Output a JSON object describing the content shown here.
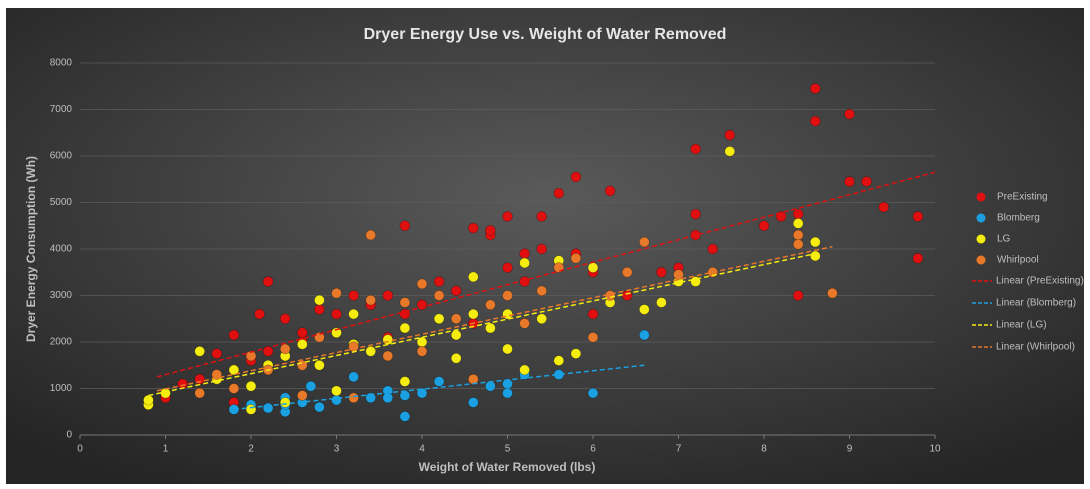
{
  "chart_data": {
    "type": "scatter",
    "title": "Dryer Energy Use vs. Weight of Water Removed",
    "x_label": "Weight of Water Removed (lbs)",
    "y_label": "Dryer Energy Consumption (Wh)",
    "xlim": [
      0,
      10
    ],
    "xticks": [
      0,
      1,
      2,
      3,
      4,
      5,
      6,
      7,
      8,
      9,
      10
    ],
    "ylim": [
      0,
      8000
    ],
    "yticks": [
      0,
      1000,
      2000,
      3000,
      4000,
      5000,
      6000,
      7000,
      8000
    ],
    "grid": true,
    "legend": "right",
    "series": [
      {
        "name": "PreExisting",
        "color": "#e01010",
        "x": [
          1,
          1.2,
          1.6,
          1.8,
          1.8,
          2,
          2.1,
          2.2,
          2.2,
          2.4,
          2.6,
          2.8,
          3,
          3.2,
          3.4,
          3.6,
          3.8,
          3.8,
          4,
          4.2,
          4.4,
          4.6,
          4.8,
          4.8,
          5,
          5,
          5.2,
          5.4,
          5.4,
          5.6,
          5.8,
          5.8,
          6,
          6,
          6.2,
          6.4,
          6.8,
          7,
          7.2,
          7.2,
          7.2,
          7.4,
          7.6,
          8,
          8.2,
          8.4,
          8.4,
          8.6,
          8.6,
          9,
          9,
          9.2,
          9.4,
          9.8,
          9.8,
          1.4,
          2.6,
          3.6,
          4.6,
          5.2
        ],
        "values": [
          800,
          1100,
          1750,
          2150,
          700,
          1600,
          2600,
          3300,
          1800,
          2500,
          2200,
          2700,
          2600,
          3000,
          2800,
          3000,
          4500,
          2600,
          2800,
          3300,
          3100,
          4450,
          4300,
          4400,
          4700,
          3600,
          3900,
          4700,
          4000,
          5200,
          5550,
          3900,
          3500,
          2600,
          5250,
          3000,
          3500,
          3600,
          6150,
          4750,
          4300,
          4000,
          6450,
          4500,
          4700,
          4750,
          3000,
          7450,
          6750,
          6900,
          5450,
          5450,
          4900,
          4700,
          3800,
          1200,
          2000,
          2100,
          2400,
          3300
        ]
      },
      {
        "name": "Blomberg",
        "color": "#1ba1e2",
        "x": [
          1.8,
          2,
          2.2,
          2.4,
          2.4,
          2.6,
          2.7,
          2.8,
          3,
          3.2,
          3.4,
          3.6,
          3.8,
          3.8,
          4,
          4.2,
          4.6,
          4.8,
          5,
          5,
          5.2,
          5.6,
          6,
          6.6,
          2.4,
          3.6
        ],
        "values": [
          550,
          650,
          580,
          500,
          800,
          700,
          1050,
          600,
          750,
          1250,
          800,
          950,
          400,
          850,
          900,
          1150,
          700,
          1050,
          1100,
          900,
          1300,
          1300,
          900,
          2150,
          650,
          800
        ]
      },
      {
        "name": "LG",
        "color": "#f5ec10",
        "x": [
          0.8,
          0.8,
          1,
          1.4,
          1.6,
          1.8,
          2,
          2,
          2.2,
          2.4,
          2.4,
          2.6,
          2.8,
          2.8,
          3,
          3.2,
          3.2,
          3.4,
          3.6,
          3.8,
          3.8,
          4,
          4.2,
          4.4,
          4.6,
          4.6,
          4.8,
          5,
          5,
          5.2,
          5.2,
          5.4,
          5.6,
          5.6,
          5.8,
          6,
          6.2,
          6.6,
          6.8,
          7,
          7.2,
          7.6,
          8.4,
          8.6,
          8.6,
          3,
          4.4
        ],
        "values": [
          650,
          750,
          900,
          1800,
          1200,
          1400,
          1050,
          550,
          1500,
          1700,
          700,
          1950,
          2900,
          1500,
          2200,
          1950,
          2600,
          1800,
          2050,
          1150,
          2300,
          2000,
          2500,
          2150,
          3400,
          2600,
          2300,
          2600,
          1850,
          3700,
          1400,
          2500,
          1600,
          3750,
          1750,
          3600,
          2850,
          2700,
          2850,
          3300,
          3300,
          6100,
          4550,
          4150,
          3850,
          950,
          1650
        ]
      },
      {
        "name": "Whirlpool",
        "color": "#e8782a",
        "x": [
          1.4,
          1.6,
          1.8,
          2,
          2.2,
          2.4,
          2.6,
          2.6,
          2.8,
          3,
          3.2,
          3.4,
          3.4,
          3.6,
          3.8,
          4,
          4,
          4.2,
          4.4,
          4.6,
          4.8,
          5,
          5.2,
          5.4,
          5.6,
          5.8,
          6,
          6.2,
          6.4,
          6.6,
          7,
          7.4,
          8.4,
          8.4,
          8.8,
          3.2
        ],
        "values": [
          900,
          1300,
          1000,
          1700,
          1400,
          1850,
          1500,
          850,
          2100,
          3050,
          1900,
          4300,
          2900,
          1700,
          2850,
          3250,
          1800,
          3000,
          2500,
          1200,
          2800,
          3000,
          2400,
          3100,
          3600,
          3800,
          2100,
          3000,
          3500,
          4150,
          3450,
          3500,
          4300,
          4100,
          3050,
          800
        ]
      }
    ],
    "trendlines": [
      {
        "name": "Linear (PreExisting)",
        "color": "#e01010",
        "x": [
          0.9,
          10
        ],
        "values": [
          1250,
          5650
        ]
      },
      {
        "name": "Linear (Blomberg)",
        "color": "#1ba1e2",
        "x": [
          1.8,
          6.6
        ],
        "values": [
          550,
          1500
        ]
      },
      {
        "name": "Linear (LG)",
        "color": "#f5ec10",
        "x": [
          0.8,
          8.6
        ],
        "values": [
          850,
          3900
        ]
      },
      {
        "name": "Linear (Whirlpool)",
        "color": "#e8782a",
        "x": [
          0.9,
          8.8
        ],
        "values": [
          950,
          4050
        ]
      }
    ]
  }
}
